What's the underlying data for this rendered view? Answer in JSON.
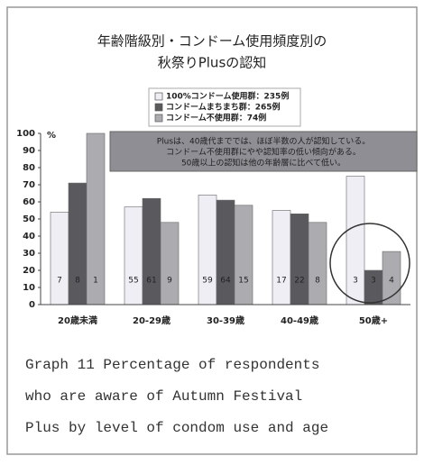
{
  "chart_data": {
    "type": "bar",
    "title": [
      "年齢階級別・コンドーム使用頻度別の",
      "秋祭りPlusの認知"
    ],
    "y_unit": "%",
    "categories": [
      "20歳未満",
      "20-29歳",
      "30-39歳",
      "40-49歳",
      "50歳+"
    ],
    "series": [
      {
        "name": "100%コンドーム使用群：235例",
        "color": "#eeeef4",
        "values": [
          54,
          57,
          64,
          55,
          75
        ],
        "counts": [
          7,
          55,
          59,
          17,
          3
        ]
      },
      {
        "name": "コンドームまちまち群：265例",
        "color": "#5a5a5e",
        "values": [
          71,
          62,
          61,
          53,
          20
        ],
        "counts": [
          8,
          61,
          64,
          22,
          3
        ]
      },
      {
        "name": "コンドーム不使用群：74例",
        "color": "#acacb0",
        "values": [
          100,
          48,
          58,
          48,
          31
        ],
        "counts": [
          1,
          9,
          15,
          8,
          4
        ]
      }
    ],
    "annotation": [
      "Plusは、40歳代まででは、ほぼ半数の人が認知している。",
      "コンドーム不使用群にやや認知率の低い傾向がある。",
      "50歳以上の認知は他の年齢層に比べて低い。"
    ],
    "ylim": [
      0,
      100
    ],
    "yticks": [
      0,
      10,
      20,
      30,
      40,
      50,
      60,
      70,
      80,
      90,
      100
    ],
    "caption": [
      "Graph 11 Percentage of respondents",
      "who are aware of Autumn Festival",
      "Plus by level of condom use and age"
    ]
  }
}
